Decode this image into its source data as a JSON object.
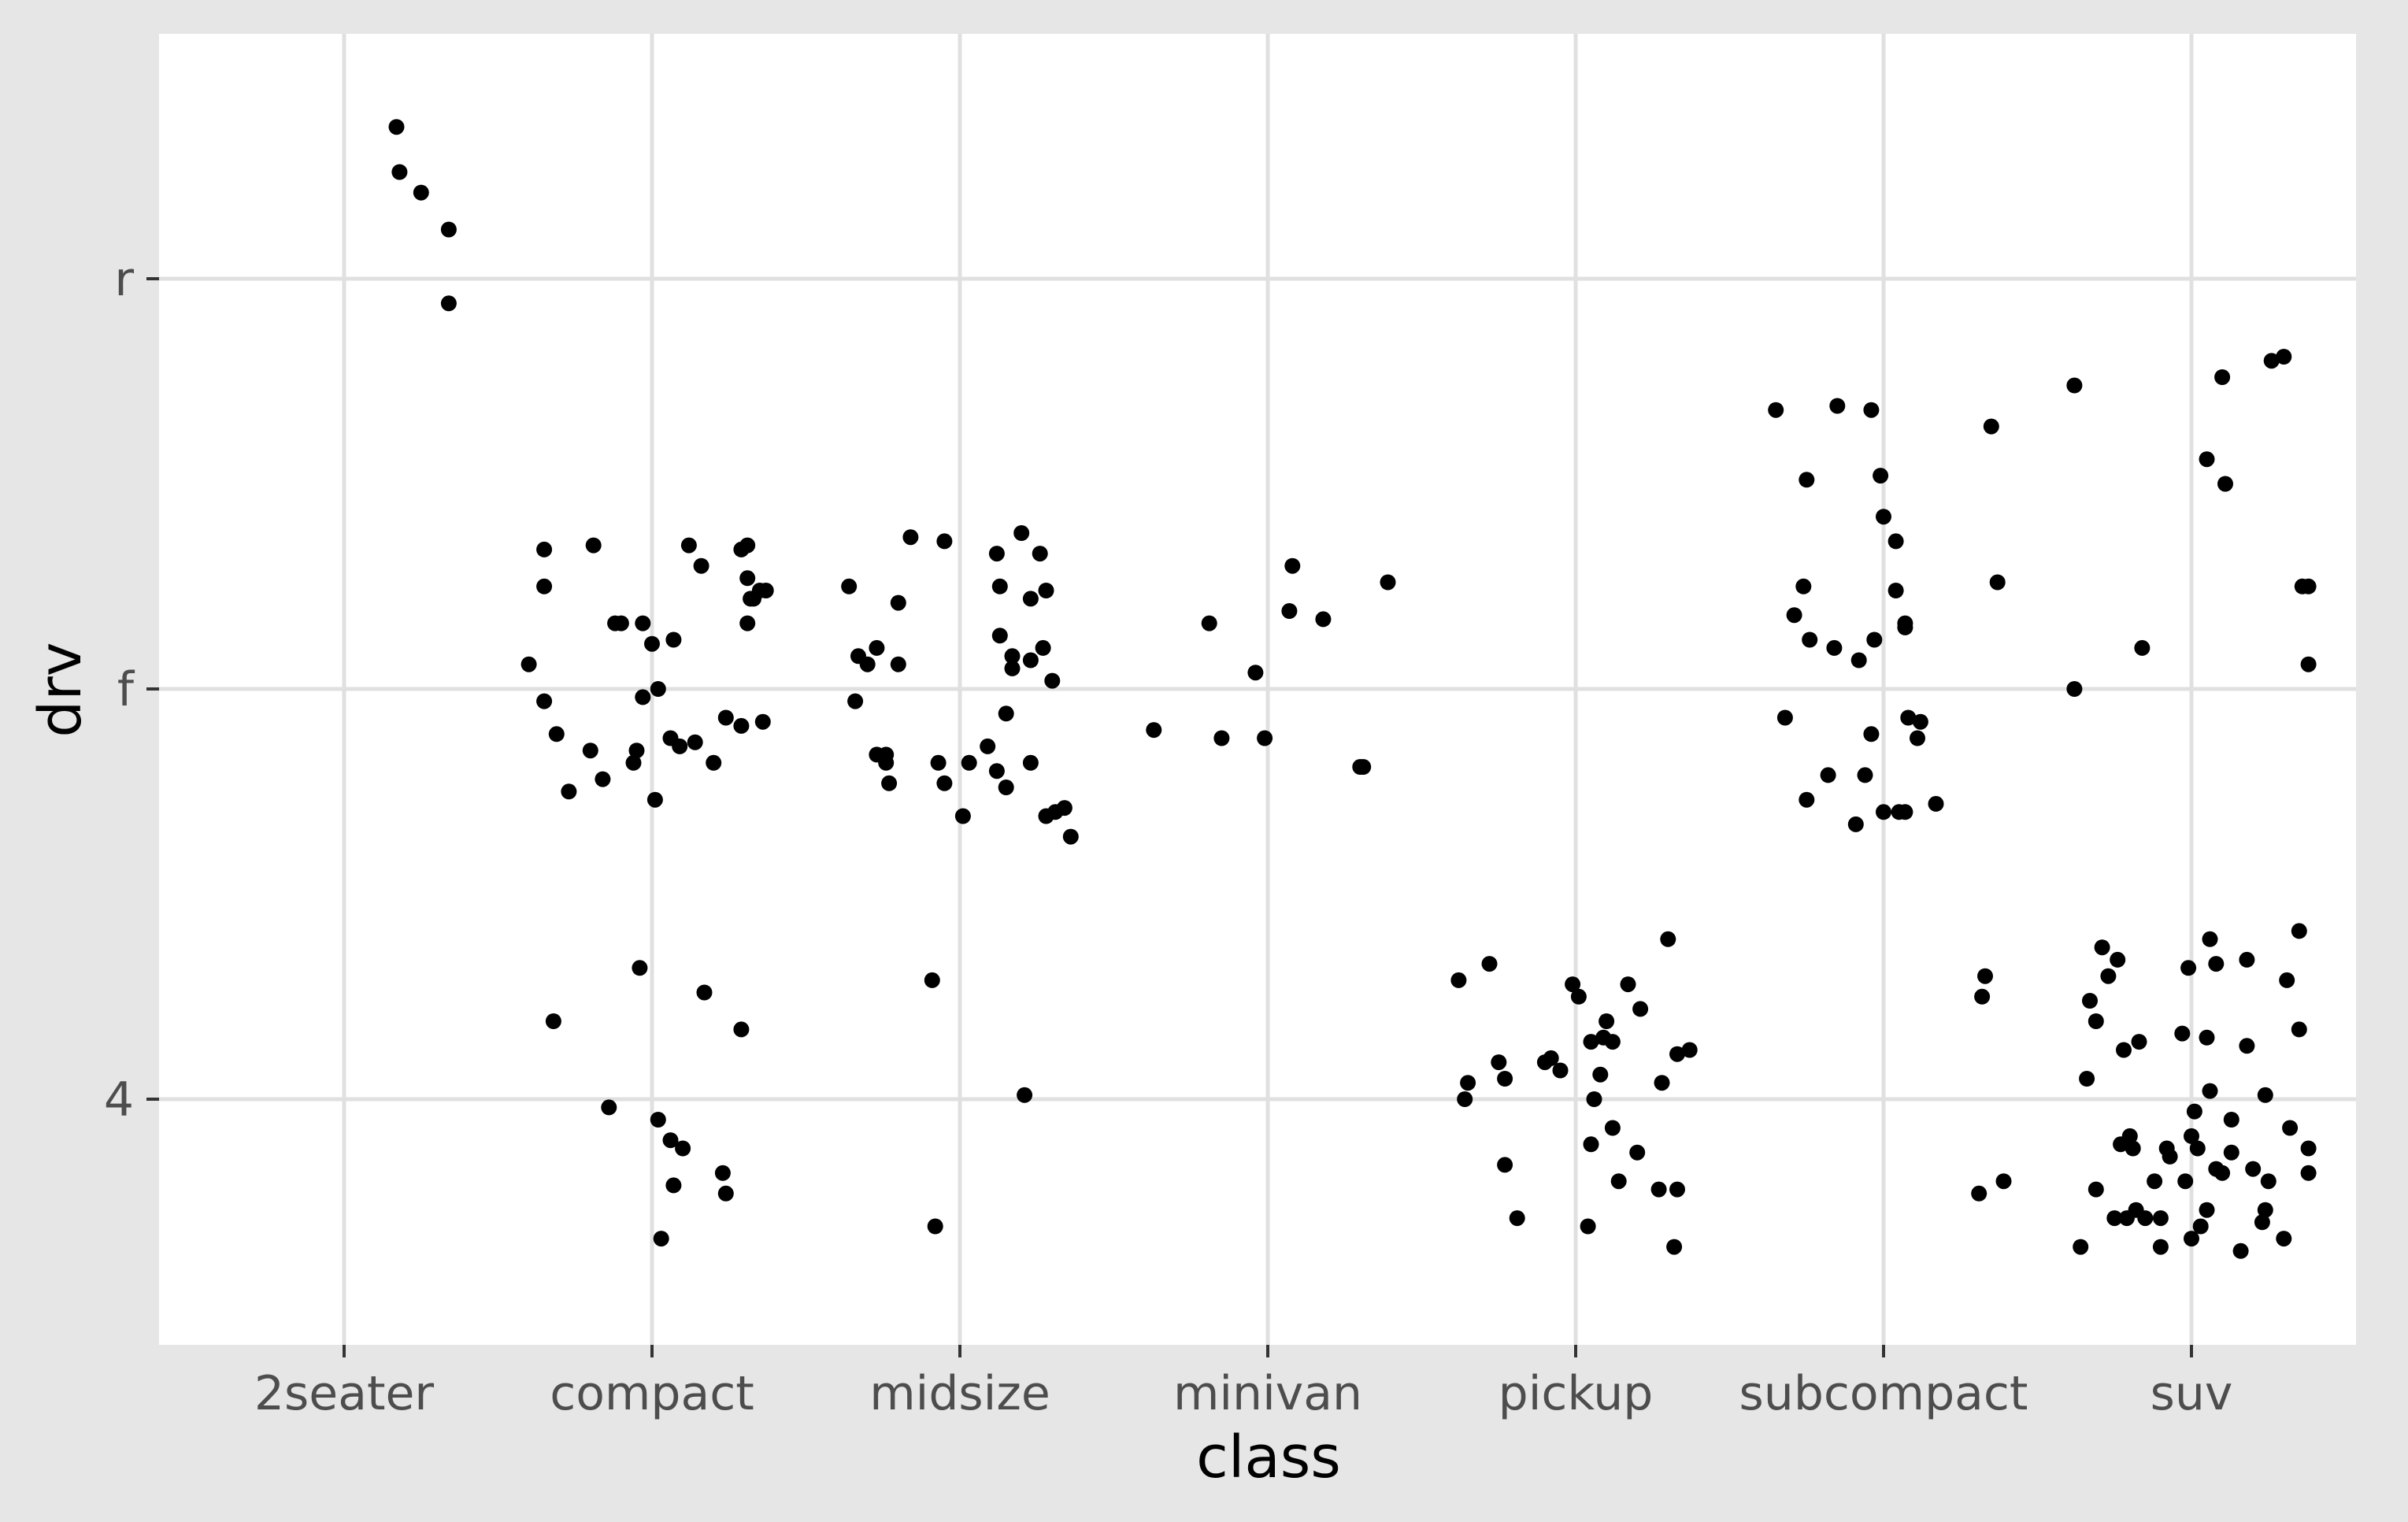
{
  "chart_data": {
    "type": "scatter",
    "jitter": true,
    "xlabel": "class",
    "ylabel": "drv",
    "x_categories": [
      "2seater",
      "compact",
      "midsize",
      "minivan",
      "pickup",
      "subcompact",
      "suv"
    ],
    "y_categories": [
      "4",
      "f",
      "r"
    ],
    "grid": true,
    "background": "#ebebeb",
    "colors": {
      "panel": "#ffffff",
      "grid": "#e0e0e0",
      "point": "#000000",
      "plot_background": "#e6e6e6",
      "tick_text": "#4d4d4d"
    },
    "counts": [
      {
        "class": "2seater",
        "drv": "r",
        "n": 5
      },
      {
        "class": "compact",
        "drv": "f",
        "n": 35
      },
      {
        "class": "compact",
        "drv": "4",
        "n": 12
      },
      {
        "class": "midsize",
        "drv": "f",
        "n": 38
      },
      {
        "class": "midsize",
        "drv": "4",
        "n": 3
      },
      {
        "class": "minivan",
        "drv": "f",
        "n": 11
      },
      {
        "class": "pickup",
        "drv": "4",
        "n": 33
      },
      {
        "class": "subcompact",
        "drv": "f",
        "n": 22
      },
      {
        "class": "subcompact",
        "drv": "r",
        "n": 9
      },
      {
        "class": "subcompact",
        "drv": "4",
        "n": 4
      },
      {
        "class": "suv",
        "drv": "4",
        "n": 51
      },
      {
        "class": "suv",
        "drv": "r",
        "n": 11
      }
    ],
    "points": [
      [
        0.17,
        2.37
      ],
      [
        0.18,
        2.26
      ],
      [
        0.25,
        2.21
      ],
      [
        0.34,
        2.12
      ],
      [
        0.34,
        1.94
      ],
      [
        0.6,
        1.06
      ],
      [
        0.65,
        1.34
      ],
      [
        0.65,
        1.25
      ],
      [
        0.65,
        0.97
      ],
      [
        0.69,
        0.89
      ],
      [
        0.73,
        0.75
      ],
      [
        0.8,
        0.85
      ],
      [
        0.81,
        1.35
      ],
      [
        0.84,
        0.78
      ],
      [
        0.88,
        1.16
      ],
      [
        0.9,
        1.16
      ],
      [
        0.94,
        0.82
      ],
      [
        0.95,
        0.85
      ],
      [
        0.97,
        0.98
      ],
      [
        0.97,
        1.16
      ],
      [
        1.0,
        1.11
      ],
      [
        1.01,
        0.73
      ],
      [
        1.02,
        1.0
      ],
      [
        1.06,
        0.88
      ],
      [
        1.07,
        1.12
      ],
      [
        1.09,
        0.86
      ],
      [
        1.12,
        1.35
      ],
      [
        1.14,
        0.87
      ],
      [
        1.16,
        1.3
      ],
      [
        1.2,
        0.82
      ],
      [
        1.24,
        0.93
      ],
      [
        1.29,
        0.91
      ],
      [
        1.29,
        1.34
      ],
      [
        1.31,
        1.35
      ],
      [
        1.31,
        1.27
      ],
      [
        1.31,
        1.16
      ],
      [
        1.32,
        1.22
      ],
      [
        1.33,
        1.22
      ],
      [
        1.35,
        1.24
      ],
      [
        1.36,
        0.92
      ],
      [
        1.37,
        1.24
      ],
      [
        0.68,
        0.19
      ],
      [
        0.86,
        -0.02
      ],
      [
        0.96,
        0.32
      ],
      [
        1.02,
        -0.05
      ],
      [
        1.06,
        -0.1
      ],
      [
        1.1,
        -0.12
      ],
      [
        1.03,
        -0.34
      ],
      [
        1.07,
        -0.21
      ],
      [
        1.17,
        0.26
      ],
      [
        1.23,
        -0.18
      ],
      [
        1.24,
        -0.23
      ],
      [
        1.29,
        0.17
      ],
      [
        1.64,
        1.25
      ],
      [
        1.66,
        0.97
      ],
      [
        1.67,
        1.08
      ],
      [
        1.7,
        1.06
      ],
      [
        1.73,
        1.1
      ],
      [
        1.73,
        0.84
      ],
      [
        1.76,
        0.84
      ],
      [
        1.76,
        0.82
      ],
      [
        1.77,
        0.77
      ],
      [
        1.8,
        1.21
      ],
      [
        1.8,
        1.06
      ],
      [
        1.84,
        1.37
      ],
      [
        1.93,
        0.82
      ],
      [
        1.95,
        0.77
      ],
      [
        1.95,
        1.36
      ],
      [
        2.03,
        0.82
      ],
      [
        2.01,
        0.69
      ],
      [
        2.09,
        0.86
      ],
      [
        2.12,
        1.33
      ],
      [
        2.13,
        1.13
      ],
      [
        2.12,
        0.8
      ],
      [
        2.13,
        1.25
      ],
      [
        2.15,
        0.76
      ],
      [
        2.15,
        0.94
      ],
      [
        2.17,
        1.05
      ],
      [
        2.17,
        1.08
      ],
      [
        2.2,
        1.38
      ],
      [
        2.23,
        0.82
      ],
      [
        2.23,
        1.07
      ],
      [
        2.23,
        1.22
      ],
      [
        2.26,
        1.33
      ],
      [
        2.27,
        1.1
      ],
      [
        2.28,
        1.24
      ],
      [
        2.28,
        0.69
      ],
      [
        2.3,
        1.02
      ],
      [
        2.31,
        0.7
      ],
      [
        2.34,
        0.71
      ],
      [
        2.36,
        0.64
      ],
      [
        1.91,
        0.29
      ],
      [
        1.92,
        -0.31
      ],
      [
        2.21,
        0.01
      ],
      [
        2.63,
        0.9
      ],
      [
        2.81,
        1.16
      ],
      [
        2.85,
        0.88
      ],
      [
        2.96,
        1.04
      ],
      [
        2.99,
        0.88
      ],
      [
        3.08,
        1.3
      ],
      [
        3.07,
        1.19
      ],
      [
        3.18,
        1.17
      ],
      [
        3.31,
        0.81
      ],
      [
        3.39,
        1.26
      ],
      [
        3.3,
        0.81
      ],
      [
        3.62,
        0.29
      ],
      [
        3.64,
        0.0
      ],
      [
        3.65,
        0.04
      ],
      [
        3.72,
        0.33
      ],
      [
        3.75,
        0.09
      ],
      [
        3.77,
        0.05
      ],
      [
        3.77,
        -0.16
      ],
      [
        3.81,
        -0.29
      ],
      [
        3.9,
        0.09
      ],
      [
        3.92,
        0.1
      ],
      [
        3.95,
        0.07
      ],
      [
        3.99,
        0.28
      ],
      [
        4.01,
        0.25
      ],
      [
        4.04,
        -0.31
      ],
      [
        4.05,
        0.14
      ],
      [
        4.05,
        -0.11
      ],
      [
        4.06,
        0.0
      ],
      [
        4.09,
        0.15
      ],
      [
        4.12,
        0.14
      ],
      [
        4.08,
        0.06
      ],
      [
        4.1,
        0.19
      ],
      [
        4.12,
        -0.07
      ],
      [
        4.14,
        -0.2
      ],
      [
        4.17,
        0.28
      ],
      [
        4.2,
        -0.13
      ],
      [
        4.21,
        0.22
      ],
      [
        4.28,
        0.04
      ],
      [
        4.27,
        -0.22
      ],
      [
        4.3,
        0.39
      ],
      [
        4.32,
        -0.36
      ],
      [
        4.33,
        -0.22
      ],
      [
        4.33,
        0.11
      ],
      [
        4.37,
        0.12
      ],
      [
        4.65,
        1.68
      ],
      [
        4.75,
        1.51
      ],
      [
        4.85,
        1.69
      ],
      [
        4.96,
        1.68
      ],
      [
        4.99,
        1.52
      ],
      [
        5.0,
        1.42
      ],
      [
        5.07,
        1.16
      ],
      [
        5.35,
        1.64
      ],
      [
        5.37,
        1.26
      ],
      [
        4.68,
        0.93
      ],
      [
        4.71,
        1.18
      ],
      [
        4.74,
        1.25
      ],
      [
        4.75,
        0.73
      ],
      [
        4.76,
        1.12
      ],
      [
        4.84,
        1.1
      ],
      [
        4.82,
        0.79
      ],
      [
        4.91,
        0.67
      ],
      [
        4.92,
        1.07
      ],
      [
        4.94,
        0.79
      ],
      [
        4.96,
        0.89
      ],
      [
        4.97,
        1.12
      ],
      [
        5.0,
        0.7
      ],
      [
        5.04,
        1.24
      ],
      [
        5.04,
        1.36
      ],
      [
        5.05,
        0.7
      ],
      [
        5.07,
        0.7
      ],
      [
        5.07,
        1.15
      ],
      [
        5.08,
        0.93
      ],
      [
        5.11,
        0.88
      ],
      [
        5.12,
        0.92
      ],
      [
        5.17,
        0.72
      ],
      [
        5.32,
        0.25
      ],
      [
        5.33,
        0.3
      ],
      [
        5.31,
        -0.23
      ],
      [
        5.39,
        -0.2
      ],
      [
        5.62,
        1.0
      ],
      [
        5.62,
        1.74
      ],
      [
        5.84,
        1.1
      ],
      [
        6.05,
        1.56
      ],
      [
        6.1,
        1.76
      ],
      [
        6.11,
        1.5
      ],
      [
        6.26,
        1.8
      ],
      [
        6.3,
        1.81
      ],
      [
        6.36,
        1.25
      ],
      [
        6.38,
        1.25
      ],
      [
        6.38,
        1.06
      ],
      [
        5.64,
        -0.36
      ],
      [
        5.66,
        0.05
      ],
      [
        5.67,
        0.24
      ],
      [
        5.69,
        0.19
      ],
      [
        5.69,
        -0.22
      ],
      [
        5.71,
        0.37
      ],
      [
        5.73,
        0.3
      ],
      [
        5.76,
        0.34
      ],
      [
        5.75,
        -0.29
      ],
      [
        5.77,
        -0.11
      ],
      [
        5.78,
        0.12
      ],
      [
        5.79,
        -0.29
      ],
      [
        5.8,
        -0.09
      ],
      [
        5.81,
        -0.12
      ],
      [
        5.82,
        -0.27
      ],
      [
        5.83,
        0.14
      ],
      [
        5.85,
        -0.29
      ],
      [
        5.88,
        -0.2
      ],
      [
        5.9,
        -0.29
      ],
      [
        5.9,
        -0.36
      ],
      [
        5.92,
        -0.12
      ],
      [
        5.93,
        -0.14
      ],
      [
        5.97,
        0.16
      ],
      [
        5.98,
        -0.2
      ],
      [
        5.99,
        0.32
      ],
      [
        6.0,
        -0.09
      ],
      [
        6.0,
        -0.34
      ],
      [
        6.01,
        -0.03
      ],
      [
        6.02,
        -0.12
      ],
      [
        6.03,
        -0.31
      ],
      [
        6.05,
        -0.27
      ],
      [
        6.05,
        0.15
      ],
      [
        6.06,
        0.02
      ],
      [
        6.06,
        0.39
      ],
      [
        6.08,
        -0.17
      ],
      [
        6.08,
        0.33
      ],
      [
        6.1,
        -0.18
      ],
      [
        6.13,
        -0.13
      ],
      [
        6.13,
        -0.05
      ],
      [
        6.16,
        -0.37
      ],
      [
        6.18,
        0.13
      ],
      [
        6.18,
        0.34
      ],
      [
        6.2,
        -0.17
      ],
      [
        6.23,
        -0.3
      ],
      [
        6.24,
        0.01
      ],
      [
        6.24,
        -0.27
      ],
      [
        6.25,
        -0.2
      ],
      [
        6.3,
        -0.34
      ],
      [
        6.31,
        0.29
      ],
      [
        6.32,
        -0.07
      ],
      [
        6.35,
        0.17
      ],
      [
        6.35,
        0.41
      ],
      [
        6.38,
        -0.18
      ],
      [
        6.38,
        -0.12
      ]
    ]
  }
}
